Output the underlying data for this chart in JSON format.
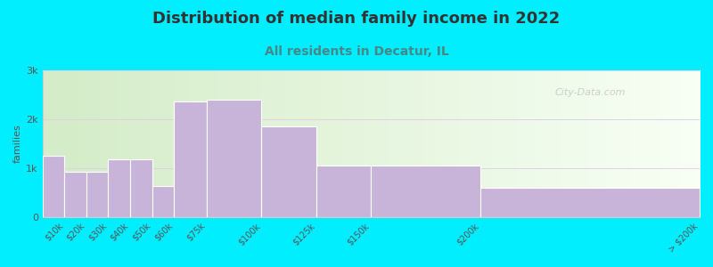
{
  "title": "Distribution of median family income in 2022",
  "subtitle": "All residents in Decatur, IL",
  "ylabel": "families",
  "bar_color": "#c8b4d8",
  "bar_edgecolor": "#ffffff",
  "background_color": "#00eeff",
  "plot_bg_left": "#d4ecc8",
  "plot_bg_right": "#f8fff8",
  "grid_color": "#e0d0e8",
  "ylim": [
    0,
    3000
  ],
  "yticks": [
    0,
    1000,
    2000,
    3000
  ],
  "ytick_labels": [
    "0",
    "1k",
    "2k",
    "3k"
  ],
  "title_fontsize": 13,
  "subtitle_fontsize": 10,
  "title_color": "#333333",
  "subtitle_color": "#448888",
  "watermark": "City-Data.com",
  "bar_edges": [
    0,
    10,
    20,
    30,
    40,
    50,
    60,
    75,
    100,
    125,
    150,
    200,
    300
  ],
  "bar_values": [
    1250,
    930,
    930,
    1180,
    1180,
    640,
    2370,
    2400,
    1850,
    1060,
    1060,
    590
  ],
  "xtick_labels": [
    "$10k",
    "$20k",
    "$30k",
    "$40k",
    "$50k",
    "$60k",
    "$75k",
    "$100k",
    "$125k",
    "$150k",
    "$200k",
    "> $200k"
  ]
}
